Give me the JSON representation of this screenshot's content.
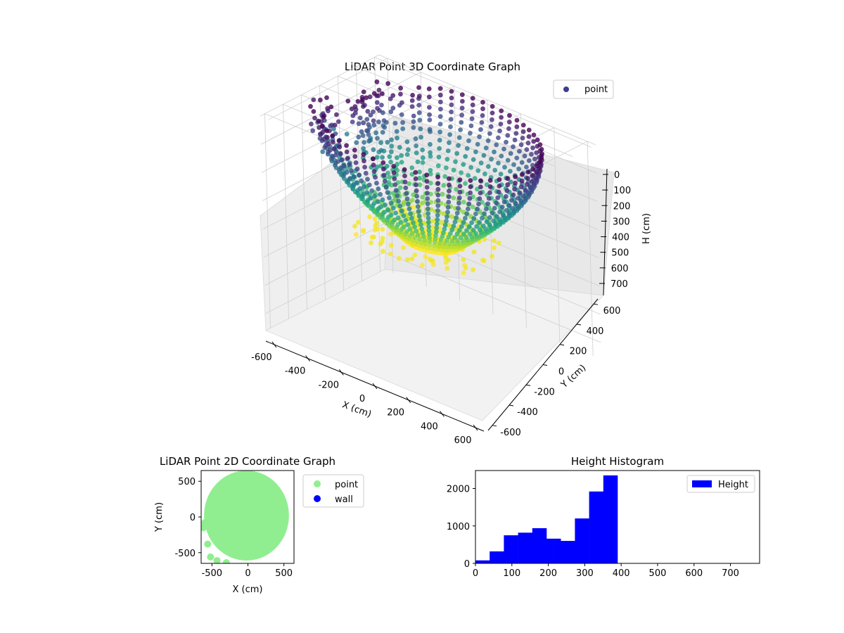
{
  "chart_data": [
    {
      "type": "scatter",
      "subtype": "3d",
      "title": "LiDAR Point 3D Coordinate Graph",
      "xlabel": "X (cm)",
      "ylabel": "Y (cm)",
      "zlabel": "H (cm)",
      "x_ticks": [
        -600,
        -400,
        -200,
        0,
        200,
        400,
        600
      ],
      "y_ticks": [
        -600,
        -400,
        -200,
        0,
        200,
        400,
        600
      ],
      "h_ticks": [
        0,
        100,
        200,
        300,
        400,
        500,
        600,
        700
      ],
      "xlim": [
        -650,
        650
      ],
      "ylim": [
        -650,
        650
      ],
      "hlim": [
        0,
        760
      ],
      "h_axis_inverted": true,
      "colormap": "viridis",
      "legend": [
        {
          "label": "point",
          "color": "#3b3f8c"
        }
      ],
      "legend_position": "upper right",
      "grid": true,
      "shape": "cylindrical scan rings around the origin, radius ~600 cm, heights ~0-390 cm"
    },
    {
      "type": "scatter",
      "title": "LiDAR Point 2D Coordinate Graph",
      "xlabel": "X (cm)",
      "ylabel": "Y (cm)",
      "x_ticks": [
        -500,
        0,
        500
      ],
      "y_ticks": [
        -500,
        0,
        500
      ],
      "xlim": [
        -650,
        640
      ],
      "ylim": [
        -650,
        650
      ],
      "series": [
        {
          "name": "point",
          "color": "#90ee90",
          "shape": "filled disc, radius ~600 cm centered at origin"
        },
        {
          "name": "wall",
          "color": "#0000ff",
          "points": []
        }
      ],
      "legend_position": "outside right"
    },
    {
      "type": "bar",
      "subtype": "histogram",
      "title": "Height Histogram",
      "series": [
        {
          "name": "Height",
          "color": "#0000ff"
        }
      ],
      "bin_edges": [
        0,
        19.5,
        39,
        58.5,
        78,
        97.5,
        117,
        136.5,
        156,
        175.5,
        195,
        214.5,
        234,
        253.5,
        273,
        292.5,
        312,
        331.5,
        351,
        370.5,
        390
      ],
      "counts": [
        80,
        80,
        320,
        320,
        750,
        750,
        820,
        820,
        940,
        940,
        660,
        660,
        600,
        600,
        1200,
        1200,
        1920,
        1920,
        2350,
        2350
      ],
      "xlim": [
        0,
        780
      ],
      "ylim": [
        0,
        2480
      ],
      "x_ticks": [
        0,
        100,
        200,
        300,
        400,
        500,
        600,
        700
      ],
      "y_ticks": [
        0,
        1000,
        2000
      ],
      "legend_position": "upper right"
    }
  ]
}
